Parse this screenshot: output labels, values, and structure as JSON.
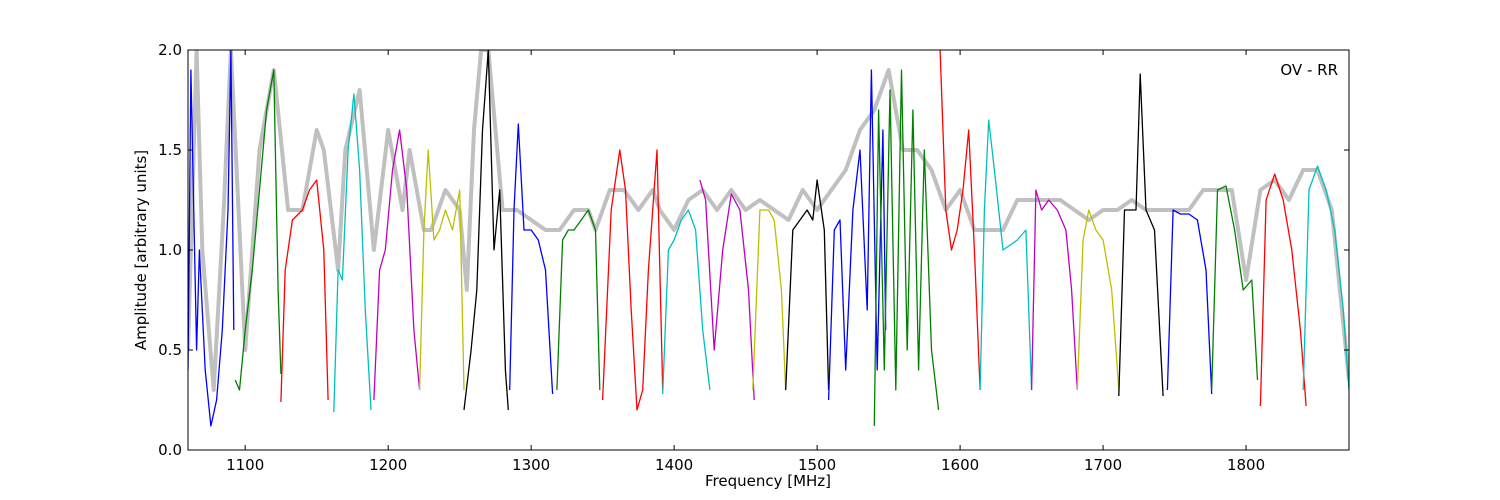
{
  "chart_data": {
    "type": "line",
    "title": "",
    "xlabel": "Frequency [MHz]",
    "ylabel": "Amplitude [arbitrary units]",
    "xlim": [
      1060,
      1872
    ],
    "ylim": [
      0.0,
      2.0
    ],
    "x_ticks": [
      1100,
      1200,
      1300,
      1400,
      1500,
      1600,
      1700,
      1800
    ],
    "x_tick_labels": [
      "1100",
      "1200",
      "1300",
      "1400",
      "1500",
      "1600",
      "1700",
      "1800"
    ],
    "y_ticks": [
      0.0,
      0.5,
      1.0,
      1.5,
      2.0
    ],
    "y_tick_labels": [
      "0.0",
      "0.5",
      "1.0",
      "1.5",
      "2.0"
    ],
    "grid": false,
    "annotation": "OV - RR",
    "background_series": {
      "name": "",
      "color": "#c0c0c0",
      "x": [
        1060,
        1066,
        1070,
        1078,
        1085,
        1090,
        1100,
        1110,
        1120,
        1130,
        1140,
        1150,
        1155,
        1165,
        1170,
        1180,
        1190,
        1200,
        1210,
        1215,
        1225,
        1230,
        1240,
        1250,
        1255,
        1260,
        1265,
        1270,
        1280,
        1290,
        1300,
        1310,
        1320,
        1330,
        1340,
        1345,
        1355,
        1365,
        1375,
        1385,
        1390,
        1400,
        1410,
        1420,
        1430,
        1440,
        1450,
        1460,
        1470,
        1480,
        1490,
        1500,
        1510,
        1520,
        1530,
        1540,
        1550,
        1560,
        1570,
        1580,
        1590,
        1600,
        1610,
        1620,
        1630,
        1640,
        1650,
        1660,
        1670,
        1680,
        1690,
        1700,
        1710,
        1720,
        1730,
        1740,
        1750,
        1760,
        1770,
        1780,
        1790,
        1800,
        1810,
        1820,
        1830,
        1840,
        1850,
        1860,
        1872
      ],
      "y": [
        0.5,
        2.0,
        1.0,
        0.3,
        1.2,
        2.0,
        0.5,
        1.5,
        1.9,
        1.2,
        1.2,
        1.6,
        1.5,
        0.9,
        1.5,
        1.8,
        1.0,
        1.6,
        1.2,
        1.5,
        1.1,
        1.1,
        1.3,
        1.2,
        0.8,
        1.6,
        2.0,
        2.0,
        1.2,
        1.2,
        1.15,
        1.1,
        1.1,
        1.2,
        1.2,
        1.1,
        1.3,
        1.3,
        1.2,
        1.3,
        1.2,
        1.1,
        1.25,
        1.3,
        1.2,
        1.3,
        1.2,
        1.25,
        1.2,
        1.15,
        1.3,
        1.2,
        1.3,
        1.4,
        1.6,
        1.7,
        1.9,
        1.5,
        1.5,
        1.4,
        1.2,
        1.3,
        1.1,
        1.1,
        1.1,
        1.25,
        1.25,
        1.25,
        1.25,
        1.2,
        1.15,
        1.2,
        1.2,
        1.25,
        1.2,
        1.2,
        1.2,
        1.2,
        1.3,
        1.3,
        1.3,
        0.85,
        1.3,
        1.35,
        1.25,
        1.4,
        1.4,
        1.2,
        0.35
      ]
    },
    "series": [
      {
        "name": "",
        "color": "#0000ff",
        "x": [
          1060,
          1062,
          1066,
          1068,
          1072,
          1076,
          1080,
          1084,
          1088,
          1090,
          1092
        ],
        "y": [
          0.4,
          1.9,
          0.5,
          1.0,
          0.4,
          0.12,
          0.25,
          0.6,
          1.2,
          2.0,
          0.6
        ]
      },
      {
        "name": "",
        "color": "#008000",
        "x": [
          1093,
          1096,
          1100,
          1105,
          1110,
          1115,
          1120,
          1123,
          1125
        ],
        "y": [
          0.35,
          0.3,
          0.6,
          0.9,
          1.3,
          1.7,
          1.9,
          0.8,
          0.38
        ]
      },
      {
        "name": "",
        "color": "#ff0000",
        "x": [
          1125,
          1128,
          1133,
          1140,
          1145,
          1150,
          1155,
          1158
        ],
        "y": [
          0.24,
          0.9,
          1.15,
          1.2,
          1.3,
          1.35,
          1.0,
          0.25
        ]
      },
      {
        "name": "",
        "color": "#00bfbf",
        "x": [
          1162,
          1165,
          1168,
          1172,
          1176,
          1180,
          1184,
          1188
        ],
        "y": [
          0.19,
          0.9,
          0.85,
          1.5,
          1.78,
          1.4,
          0.7,
          0.2
        ]
      },
      {
        "name": "",
        "color": "#bf00bf",
        "x": [
          1190,
          1194,
          1198,
          1203,
          1208,
          1213,
          1218,
          1222
        ],
        "y": [
          0.25,
          0.9,
          1.0,
          1.4,
          1.6,
          1.3,
          0.6,
          0.3
        ]
      },
      {
        "name": "",
        "color": "#bfbf00",
        "x": [
          1222,
          1225,
          1228,
          1232,
          1236,
          1240,
          1245,
          1250,
          1253
        ],
        "y": [
          0.3,
          1.1,
          1.5,
          1.05,
          1.1,
          1.2,
          1.1,
          1.3,
          0.3
        ]
      },
      {
        "name": "",
        "color": "#000000",
        "x": [
          1253,
          1258,
          1262,
          1266,
          1270,
          1274,
          1278,
          1282,
          1284
        ],
        "y": [
          0.2,
          0.5,
          0.8,
          1.6,
          2.0,
          1.0,
          1.3,
          0.4,
          0.2
        ]
      },
      {
        "name": "",
        "color": "#0000ff",
        "x": [
          1285,
          1288,
          1291,
          1295,
          1300,
          1305,
          1310,
          1315
        ],
        "y": [
          0.3,
          1.2,
          1.63,
          1.1,
          1.1,
          1.05,
          0.9,
          0.28
        ]
      },
      {
        "name": "",
        "color": "#008000",
        "x": [
          1318,
          1322,
          1326,
          1330,
          1335,
          1340,
          1345,
          1348
        ],
        "y": [
          0.3,
          1.05,
          1.1,
          1.1,
          1.15,
          1.2,
          1.1,
          0.3
        ]
      },
      {
        "name": "",
        "color": "#ff0000",
        "x": [
          1350,
          1356,
          1362,
          1366,
          1370,
          1374,
          1378,
          1382,
          1388,
          1392
        ],
        "y": [
          0.25,
          1.2,
          1.5,
          1.3,
          0.7,
          0.2,
          0.3,
          0.9,
          1.5,
          0.3
        ]
      },
      {
        "name": "",
        "color": "#00bfbf",
        "x": [
          1392,
          1396,
          1400,
          1405,
          1410,
          1415,
          1420,
          1425
        ],
        "y": [
          0.28,
          1.0,
          1.05,
          1.15,
          1.2,
          1.1,
          0.6,
          0.3
        ]
      },
      {
        "name": "",
        "color": "#bf00bf",
        "x": [
          1418,
          1422,
          1428,
          1434,
          1440,
          1446,
          1452,
          1456
        ],
        "y": [
          1.35,
          1.25,
          0.5,
          1.0,
          1.28,
          1.2,
          0.8,
          0.25
        ]
      },
      {
        "name": "",
        "color": "#bfbf00",
        "x": [
          1455,
          1460,
          1466,
          1470,
          1475,
          1478
        ],
        "y": [
          0.3,
          1.2,
          1.2,
          1.15,
          0.8,
          0.3
        ]
      },
      {
        "name": "",
        "color": "#000000",
        "x": [
          1478,
          1483,
          1488,
          1493,
          1497,
          1500,
          1505,
          1508
        ],
        "y": [
          0.3,
          1.1,
          1.15,
          1.2,
          1.15,
          1.35,
          1.1,
          0.3
        ]
      },
      {
        "name": "",
        "color": "#0000ff",
        "x": [
          1508,
          1512,
          1516,
          1520,
          1525,
          1530,
          1535,
          1538,
          1542,
          1546,
          1548
        ],
        "y": [
          0.25,
          1.1,
          1.15,
          0.4,
          1.2,
          1.5,
          0.7,
          1.9,
          0.4,
          1.6,
          0.6
        ]
      },
      {
        "name": "",
        "color": "#008000",
        "x": [
          1540,
          1543,
          1547,
          1551,
          1555,
          1559,
          1563,
          1567,
          1571,
          1575,
          1580,
          1585
        ],
        "y": [
          0.12,
          1.7,
          0.4,
          1.8,
          0.3,
          1.9,
          0.5,
          1.7,
          0.4,
          1.5,
          0.5,
          0.2
        ]
      },
      {
        "name": "",
        "color": "#ff0000",
        "x": [
          1586,
          1590,
          1594,
          1598,
          1602,
          1606,
          1610,
          1614
        ],
        "y": [
          2.0,
          1.2,
          1.0,
          1.1,
          1.3,
          1.6,
          1.0,
          0.3
        ]
      },
      {
        "name": "",
        "color": "#00bfbf",
        "x": [
          1614,
          1617,
          1620,
          1624,
          1630,
          1640,
          1646,
          1650
        ],
        "y": [
          0.3,
          1.2,
          1.65,
          1.4,
          1.0,
          1.05,
          1.1,
          0.3
        ]
      },
      {
        "name": "",
        "color": "#bf00bf",
        "x": [
          1650,
          1653,
          1657,
          1662,
          1668,
          1674,
          1678,
          1682
        ],
        "y": [
          0.3,
          1.3,
          1.2,
          1.25,
          1.2,
          1.1,
          0.8,
          0.3
        ]
      },
      {
        "name": "",
        "color": "#bfbf00",
        "x": [
          1682,
          1686,
          1690,
          1695,
          1700,
          1706,
          1711
        ],
        "y": [
          0.3,
          1.05,
          1.2,
          1.1,
          1.05,
          0.8,
          0.3
        ]
      },
      {
        "name": "",
        "color": "#000000",
        "x": [
          1711,
          1715,
          1719,
          1723,
          1726,
          1730,
          1736,
          1742
        ],
        "y": [
          0.27,
          1.2,
          1.2,
          1.2,
          1.88,
          1.2,
          1.1,
          0.27
        ]
      },
      {
        "name": "",
        "color": "#0000ff",
        "x": [
          1745,
          1749,
          1754,
          1760,
          1766,
          1772,
          1776
        ],
        "y": [
          0.3,
          1.2,
          1.18,
          1.18,
          1.15,
          0.9,
          0.28
        ]
      },
      {
        "name": "",
        "color": "#008000",
        "x": [
          1776,
          1780,
          1786,
          1792,
          1798,
          1804,
          1808
        ],
        "y": [
          0.3,
          1.3,
          1.32,
          1.1,
          0.8,
          0.85,
          0.35
        ]
      },
      {
        "name": "",
        "color": "#ff0000",
        "x": [
          1810,
          1814,
          1820,
          1826,
          1832,
          1838,
          1842
        ],
        "y": [
          0.22,
          1.25,
          1.38,
          1.25,
          1.0,
          0.6,
          0.22
        ]
      },
      {
        "name": "",
        "color": "#00bfbf",
        "x": [
          1840,
          1844,
          1850,
          1856,
          1862,
          1868,
          1872
        ],
        "y": [
          0.3,
          1.3,
          1.42,
          1.3,
          1.1,
          0.7,
          0.3
        ]
      }
    ]
  }
}
